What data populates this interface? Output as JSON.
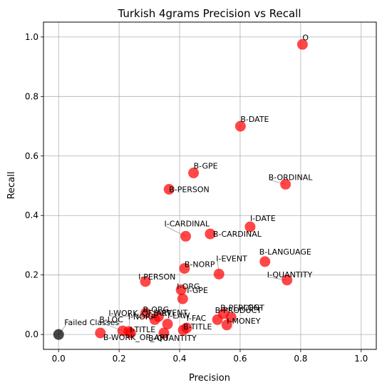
{
  "chart_data": {
    "type": "scatter",
    "title": "Turkish 4grams Precision vs Recall",
    "xlabel": "Precision",
    "ylabel": "Recall",
    "xlim": [
      -0.05,
      1.05
    ],
    "ylim": [
      -0.05,
      1.05
    ],
    "xticks": [
      0.0,
      0.2,
      0.4,
      0.6,
      0.8,
      1.0
    ],
    "yticks": [
      0.0,
      0.2,
      0.4,
      0.6,
      0.8,
      1.0
    ],
    "xtick_labels": [
      "0.0",
      "0.2",
      "0.4",
      "0.6",
      "0.8",
      "1.0"
    ],
    "ytick_labels": [
      "0.0",
      "0.2",
      "0.4",
      "0.6",
      "0.8",
      "1.0"
    ],
    "grid": true,
    "colors": {
      "point": "#ff0000",
      "failed_point": "#000000",
      "grid": "#b0b0b0",
      "leader": "#808080"
    },
    "points": [
      {
        "label": "O",
        "x": 0.806,
        "y": 0.975,
        "anchor": "start"
      },
      {
        "label": "B-DATE",
        "x": 0.601,
        "y": 0.7,
        "anchor": "start"
      },
      {
        "label": "B-GPE",
        "x": 0.446,
        "y": 0.543,
        "anchor": "start"
      },
      {
        "label": "B-PERSON",
        "x": 0.365,
        "y": 0.488,
        "anchor": "start"
      },
      {
        "label": "B-ORDINAL",
        "x": 0.75,
        "y": 0.505,
        "anchor": "start"
      },
      {
        "label": "I-DATE",
        "x": 0.633,
        "y": 0.362,
        "anchor": "start"
      },
      {
        "label": "I-CARDINAL",
        "x": 0.42,
        "y": 0.33,
        "anchor": "start"
      },
      {
        "label": "B-CARDINAL",
        "x": 0.501,
        "y": 0.338,
        "anchor": "start"
      },
      {
        "label": "B-LANGUAGE",
        "x": 0.682,
        "y": 0.245,
        "anchor": "start"
      },
      {
        "label": "I-QUANTITY",
        "x": 0.755,
        "y": 0.183,
        "anchor": "start"
      },
      {
        "label": "B-NORP",
        "x": 0.416,
        "y": 0.222,
        "anchor": "start"
      },
      {
        "label": "I-EVENT",
        "x": 0.53,
        "y": 0.203,
        "anchor": "start"
      },
      {
        "label": "I-PERSON",
        "x": 0.287,
        "y": 0.178,
        "anchor": "start"
      },
      {
        "label": "I-ORG",
        "x": 0.405,
        "y": 0.15,
        "anchor": "start"
      },
      {
        "label": "I-GPE",
        "x": 0.41,
        "y": 0.12,
        "anchor": "start"
      },
      {
        "label": "I-WORK_OF_ART",
        "x": 0.33,
        "y": 0.06,
        "anchor": "start"
      },
      {
        "label": "B-ORG",
        "x": 0.288,
        "y": 0.072,
        "anchor": "start"
      },
      {
        "label": "I-LAW",
        "x": 0.36,
        "y": 0.035,
        "anchor": "start"
      },
      {
        "label": "I-LOC",
        "x": 0.57,
        "y": 0.058,
        "anchor": "start"
      },
      {
        "label": "B-PRODUCT",
        "x": 0.545,
        "y": 0.07,
        "anchor": "start"
      },
      {
        "label": "B-PERCENT",
        "x": 0.525,
        "y": 0.05,
        "anchor": "start"
      },
      {
        "label": "B-LOC",
        "x": 0.212,
        "y": 0.012,
        "anchor": "start"
      },
      {
        "label": "I-NORP",
        "x": 0.232,
        "y": 0.01,
        "anchor": "start"
      },
      {
        "label": "B-EVENT",
        "x": 0.318,
        "y": 0.05,
        "anchor": "start"
      },
      {
        "label": "I-FAC",
        "x": 0.423,
        "y": 0.022,
        "anchor": "start"
      },
      {
        "label": "I-MONEY",
        "x": 0.556,
        "y": 0.032,
        "anchor": "start"
      },
      {
        "label": "I-TITLE",
        "x": 0.238,
        "y": 0.005,
        "anchor": "start"
      },
      {
        "label": "B-TITLE",
        "x": 0.412,
        "y": 0.015,
        "anchor": "start"
      },
      {
        "label": "B-WORK_OF_ART",
        "x": 0.138,
        "y": 0.005,
        "anchor": "start"
      },
      {
        "label": "B-QUANTITY",
        "x": 0.348,
        "y": 0.005,
        "anchor": "start"
      },
      {
        "label": "Failed Classes",
        "x": 0.0,
        "y": 0.0,
        "anchor": "start",
        "failed": true
      }
    ]
  }
}
